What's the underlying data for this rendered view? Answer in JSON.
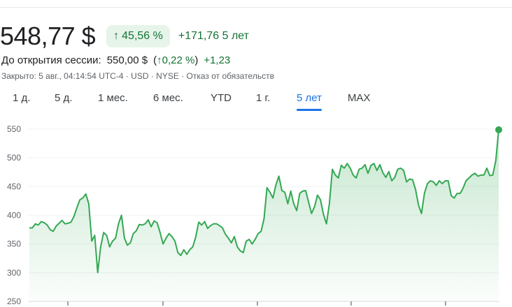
{
  "header": {
    "price": "548,77 $",
    "badge_arrow": "↑",
    "badge_pct": "45,56 %",
    "abs_change": "+171,76",
    "period": "5 лет"
  },
  "premarket": {
    "label": "До открытия сессии:",
    "price": "550,00 $",
    "paren_open": "(",
    "arrow": "↑",
    "pct": "0,22 %",
    "paren_close": ")",
    "delta": "+1,23"
  },
  "meta": {
    "text": "Закрыто: 5 авг., 04:14:54 UTC-4 · USD · NYSE · Отказ от обязательств"
  },
  "tabs": [
    {
      "label": "1 д.",
      "active": false
    },
    {
      "label": "5 д.",
      "active": false
    },
    {
      "label": "1 мес.",
      "active": false
    },
    {
      "label": "6 мес.",
      "active": false
    },
    {
      "label": "YTD",
      "active": false
    },
    {
      "label": "1 г.",
      "active": false
    },
    {
      "label": "5 лет",
      "active": true
    },
    {
      "label": "MAX",
      "active": false
    }
  ],
  "colors": {
    "line": "#34a853",
    "positive_text": "#137333",
    "badge_bg": "#e6f4ea",
    "active_tab": "#1a73e8"
  },
  "chart_data": {
    "type": "area",
    "y_ticks": [
      550,
      500,
      450,
      400,
      350,
      300,
      250
    ],
    "ylim": [
      250,
      560
    ],
    "grid": true,
    "series": [
      {
        "values": [
          378,
          378,
          385,
          383,
          389,
          387,
          383,
          375,
          372,
          381,
          386,
          391,
          385,
          386,
          388,
          398,
          413,
          427,
          430,
          437,
          420,
          355,
          365,
          300,
          345,
          370,
          365,
          345,
          355,
          360,
          385,
          400,
          360,
          348,
          352,
          368,
          373,
          384,
          383,
          385,
          392,
          380,
          390,
          387,
          370,
          350,
          360,
          368,
          363,
          355,
          335,
          330,
          340,
          332,
          340,
          345,
          362,
          388,
          383,
          389,
          377,
          382,
          385,
          385,
          382,
          378,
          367,
          360,
          352,
          363,
          345,
          338,
          335,
          355,
          358,
          350,
          358,
          368,
          372,
          394,
          448,
          440,
          430,
          453,
          468,
          443,
          440,
          420,
          442,
          420,
          408,
          438,
          442,
          443,
          423,
          403,
          415,
          435,
          427,
          402,
          385,
          420,
          480,
          470,
          465,
          487,
          482,
          490,
          482,
          470,
          465,
          480,
          482,
          488,
          473,
          487,
          490,
          478,
          488,
          474,
          466,
          476,
          460,
          466,
          480,
          482,
          478,
          458,
          463,
          462,
          445,
          418,
          403,
          438,
          455,
          460,
          458,
          452,
          460,
          455,
          460,
          460,
          434,
          430,
          438,
          438,
          447,
          460,
          465,
          470,
          473,
          468,
          470,
          470,
          482,
          469,
          470,
          495,
          548.77
        ]
      }
    ]
  }
}
